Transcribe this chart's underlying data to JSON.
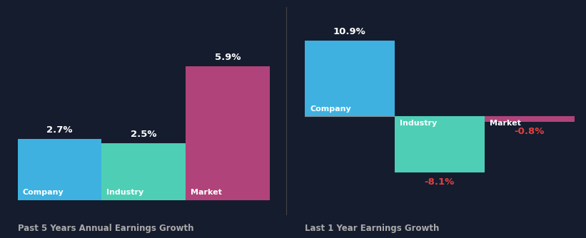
{
  "background_color": "#151C2E",
  "left_chart": {
    "title": "Past 5 Years Annual Earnings Growth",
    "bars": [
      {
        "label": "Company",
        "value": 2.7,
        "color": "#3EB1E0"
      },
      {
        "label": "Industry",
        "value": 2.5,
        "color": "#4ECFB5"
      },
      {
        "label": "Market",
        "value": 5.9,
        "color": "#B0437A"
      }
    ],
    "ylim_min": 0,
    "ylim_max": 8.0
  },
  "right_chart": {
    "title": "Last 1 Year Earnings Growth",
    "bars": [
      {
        "label": "Company",
        "value": 10.9,
        "color": "#3EB1E0"
      },
      {
        "label": "Industry",
        "value": -8.1,
        "color": "#4ECFB5"
      },
      {
        "label": "Market",
        "value": -0.8,
        "color": "#B0437A"
      }
    ],
    "ylim_min": -12.0,
    "ylim_max": 14.0
  },
  "positive_label_color": "#FFFFFF",
  "negative_label_color": "#E04040",
  "title_color": "#AAAAAA",
  "bar_label_color": "#FFFFFF",
  "zero_line_color": "#888888",
  "value_fontsize": 9.5,
  "bar_label_fontsize": 8.0,
  "title_fontsize": 8.5
}
